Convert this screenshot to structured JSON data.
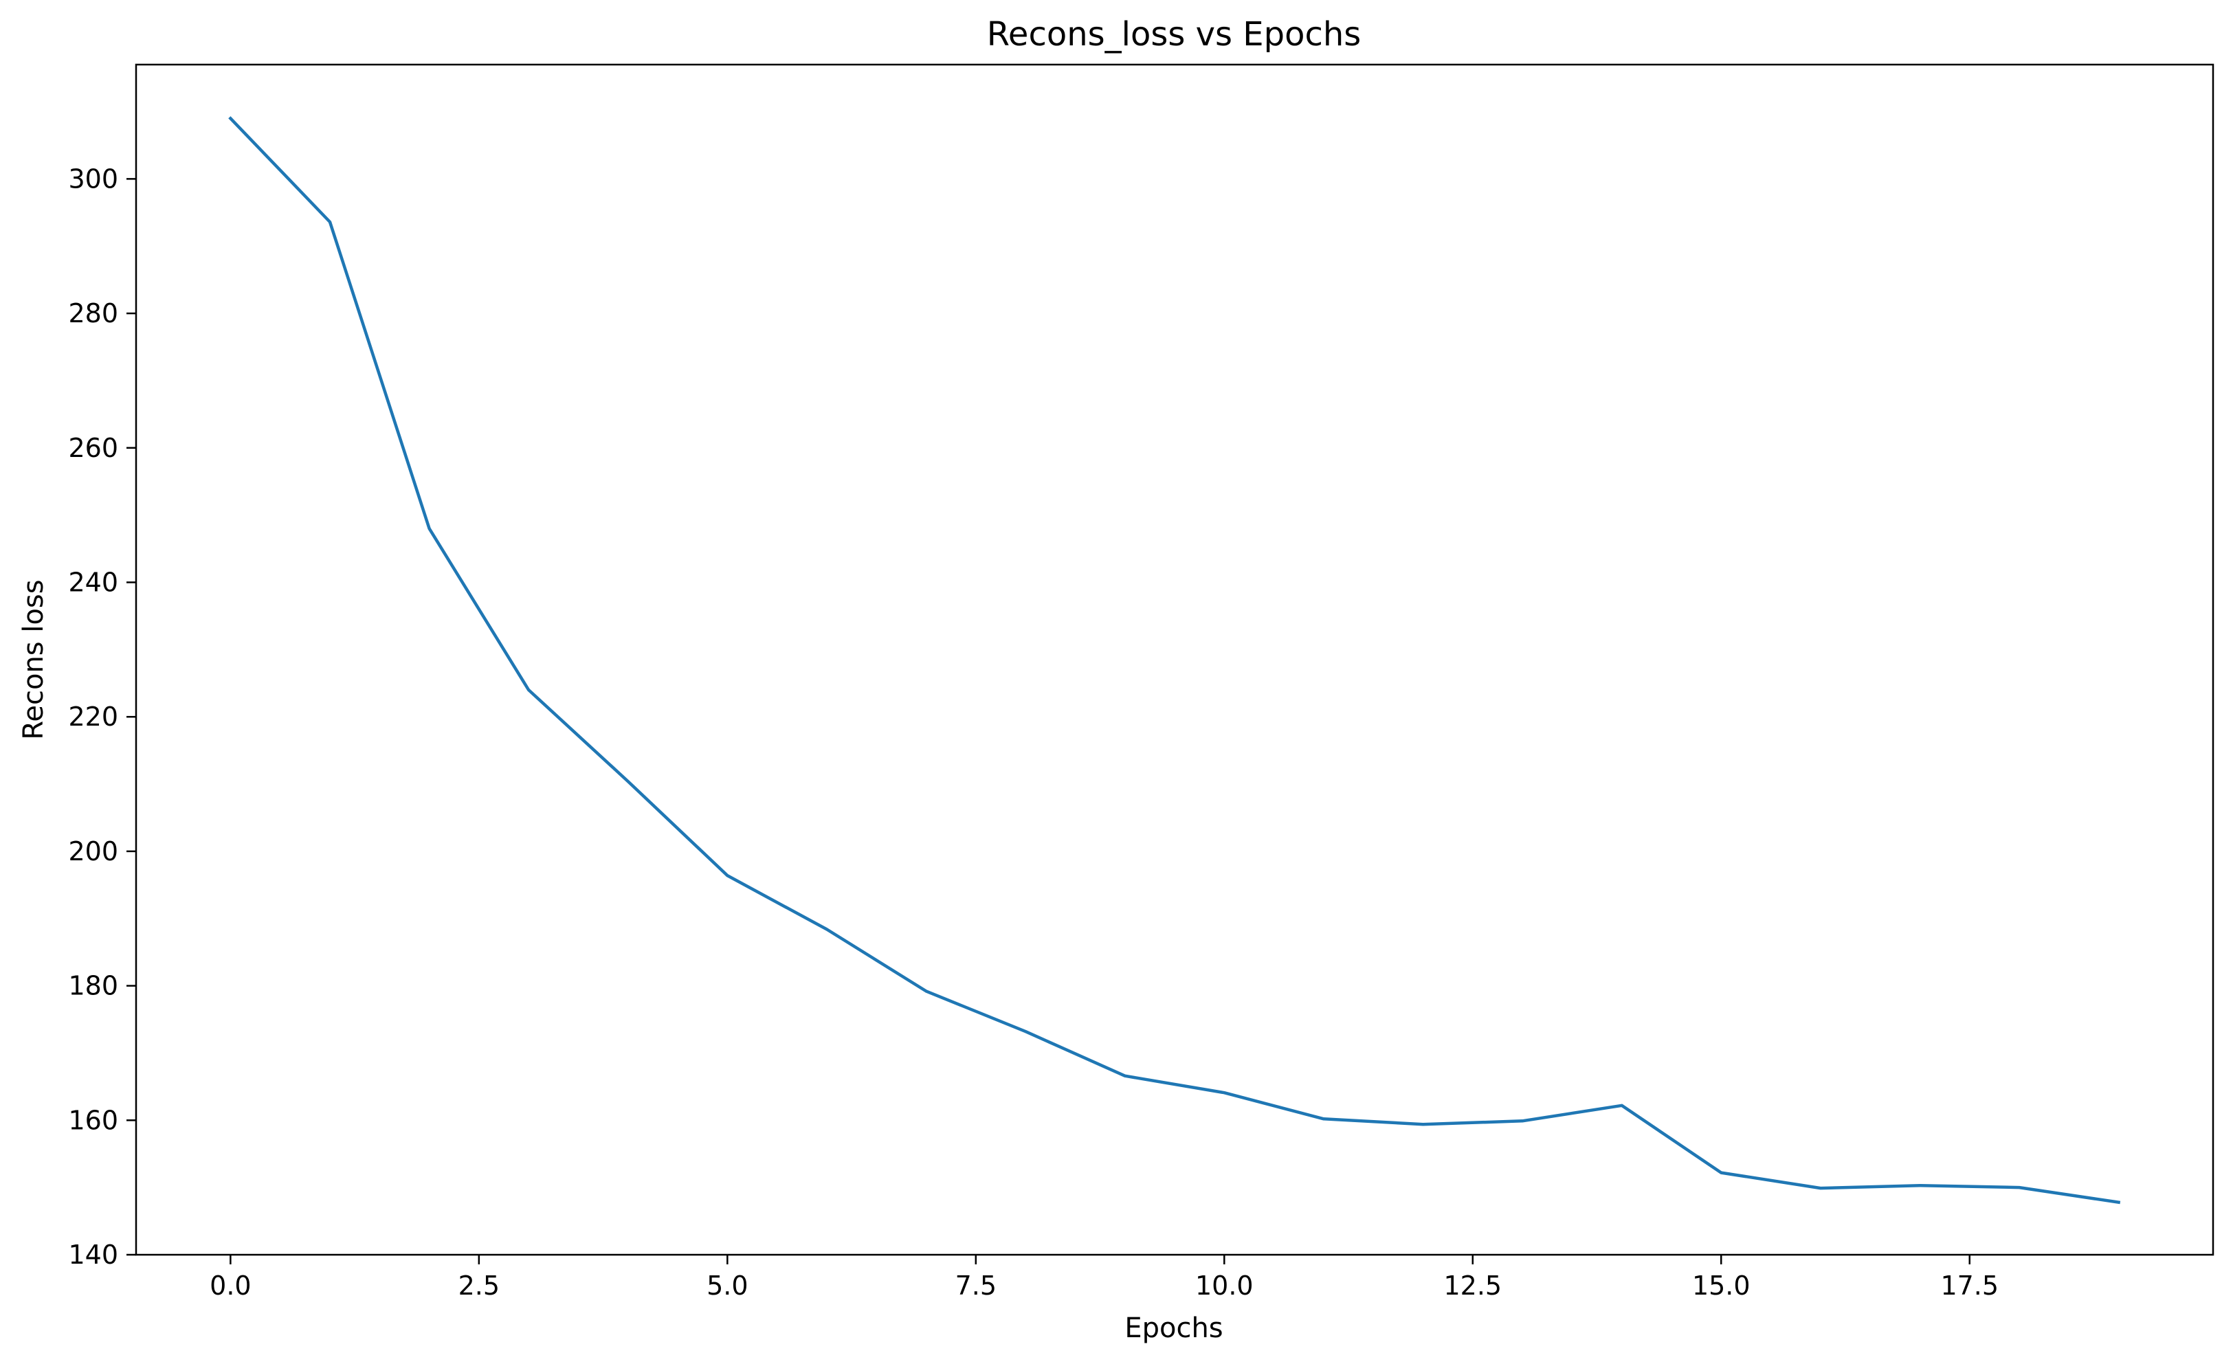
{
  "chart_data": {
    "type": "line",
    "title": "Recons_loss vs Epochs",
    "xlabel": "Epochs",
    "ylabel": "Recons loss",
    "xlim": [
      -0.95,
      19.95
    ],
    "ylim": [
      140,
      317
    ],
    "x_ticks": [
      0.0,
      2.5,
      5.0,
      7.5,
      10.0,
      12.5,
      15.0,
      17.5
    ],
    "x_tick_labels": [
      "0.0",
      "2.5",
      "5.0",
      "7.5",
      "10.0",
      "12.5",
      "15.0",
      "17.5"
    ],
    "y_ticks": [
      140,
      160,
      180,
      200,
      220,
      240,
      260,
      280,
      300
    ],
    "y_tick_labels": [
      "140",
      "160",
      "180",
      "200",
      "220",
      "240",
      "260",
      "280",
      "300"
    ],
    "grid": false,
    "series": [
      {
        "color": "#1f77b4",
        "x": [
          0,
          1,
          2,
          3,
          4,
          5,
          6,
          7,
          8,
          9,
          10,
          11,
          12,
          13,
          14,
          15,
          16,
          17,
          18,
          19
        ],
        "y": [
          309.0,
          293.6,
          248.0,
          224.0,
          210.4,
          196.4,
          188.4,
          179.2,
          173.2,
          166.6,
          164.1,
          160.2,
          159.4,
          159.9,
          162.2,
          152.2,
          149.9,
          150.3,
          150.0,
          147.8
        ]
      }
    ]
  }
}
